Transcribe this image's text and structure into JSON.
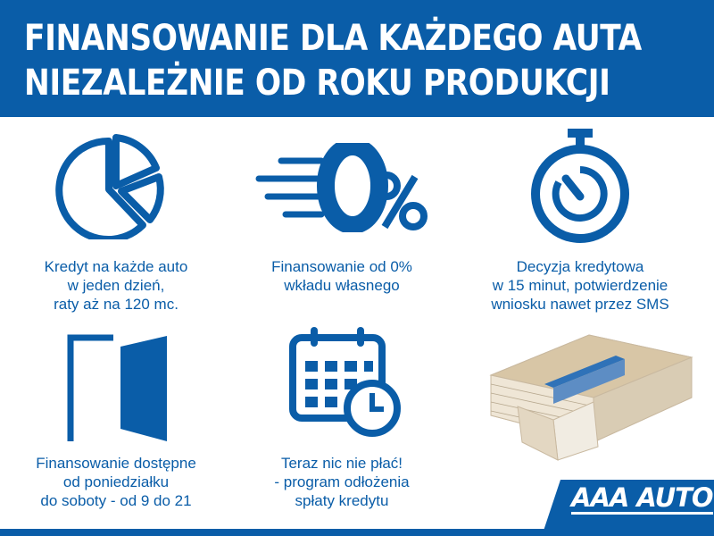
{
  "header": {
    "line1": "FINANSOWANIE DLA KAŻDEGO AUTA",
    "line2": "NIEZALEŻNIE OD ROKU PRODUKCJI"
  },
  "features": [
    {
      "icon": "pie-chart-icon",
      "lines": [
        "Kredyt na każde auto",
        "w jeden dzień,",
        "raty aż na 120 mc."
      ]
    },
    {
      "icon": "zero-percent-icon",
      "lines": [
        "Finansowanie od 0%",
        "wkładu własnego"
      ]
    },
    {
      "icon": "stopwatch-icon",
      "lines": [
        "Decyzja kredytowa",
        "w 15 minut, potwierdzenie",
        "wniosku nawet przez SMS"
      ]
    },
    {
      "icon": "open-door-icon",
      "lines": [
        "Finansowanie dostępne",
        "od poniedziałku",
        "do soboty - od 9 do 21"
      ]
    },
    {
      "icon": "calendar-clock-icon",
      "lines": [
        "Teraz nic nie płać!",
        "- program odłożenia",
        "spłaty kredytu"
      ]
    },
    {
      "icon": "money-stack-image",
      "lines": []
    }
  ],
  "logo": {
    "text": "AAA AUTO"
  },
  "colors": {
    "brand_blue": "#0a5da8",
    "background": "#ffffff"
  }
}
